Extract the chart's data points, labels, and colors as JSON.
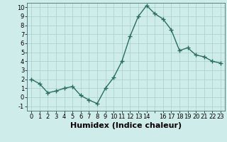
{
  "x": [
    0,
    1,
    2,
    3,
    4,
    5,
    6,
    7,
    8,
    9,
    10,
    11,
    12,
    13,
    14,
    15,
    16,
    17,
    18,
    19,
    20,
    21,
    22,
    23
  ],
  "y": [
    2.0,
    1.5,
    0.5,
    0.7,
    1.0,
    1.2,
    0.2,
    -0.3,
    -0.7,
    1.0,
    2.2,
    4.0,
    6.8,
    9.0,
    10.2,
    9.3,
    8.7,
    7.5,
    5.2,
    5.5,
    4.7,
    4.5,
    4.0,
    3.8
  ],
  "xlabel": "Humidex (Indice chaleur)",
  "xlim": [
    -0.5,
    23.5
  ],
  "ylim": [
    -1.5,
    10.5
  ],
  "yticks": [
    -1,
    0,
    1,
    2,
    3,
    4,
    5,
    6,
    7,
    8,
    9,
    10
  ],
  "xtick_labels": [
    "0",
    "1",
    "2",
    "3",
    "4",
    "5",
    "6",
    "7",
    "8",
    "9",
    "10",
    "11",
    "12",
    "13",
    "14",
    "",
    "16",
    "17",
    "18",
    "19",
    "20",
    "21",
    "22",
    "23"
  ],
  "xticks": [
    0,
    1,
    2,
    3,
    4,
    5,
    6,
    7,
    8,
    9,
    10,
    11,
    12,
    13,
    14,
    15,
    16,
    17,
    18,
    19,
    20,
    21,
    22,
    23
  ],
  "line_color": "#2a6e62",
  "marker": "+",
  "marker_size": 4,
  "bg_color": "#ceecea",
  "grid_color": "#a8cec8",
  "tick_fontsize": 6,
  "xlabel_fontsize": 8
}
